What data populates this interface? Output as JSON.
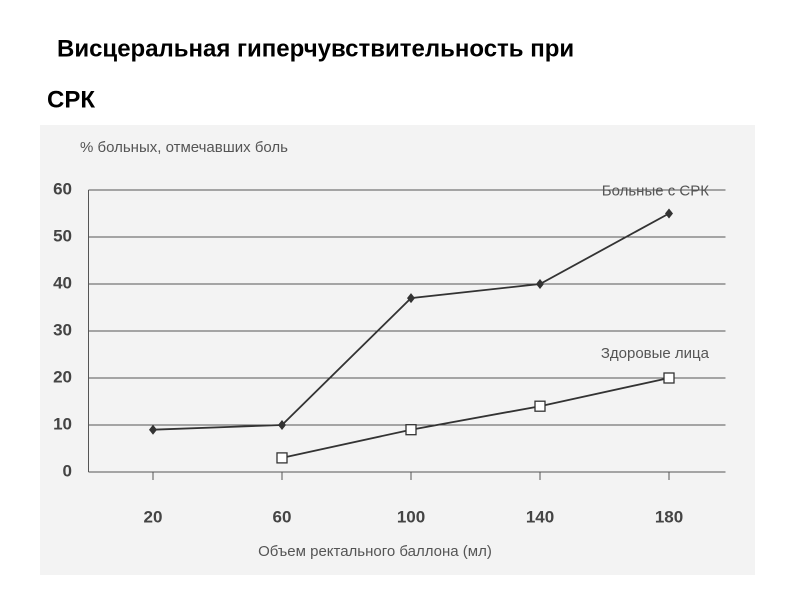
{
  "chart_data": {
    "type": "line",
    "title": "Висцеральная гиперчувствительность при",
    "subtitle": "СРК",
    "y_label": "% больных, отмечавших боль",
    "x_label": "Объем ректального баллона (мл)",
    "x": [
      20,
      60,
      100,
      140,
      180
    ],
    "series": [
      {
        "name": "Больные с СРК",
        "color": "#333333",
        "marker": "diamond",
        "values": [
          9,
          10,
          37,
          40,
          55
        ]
      },
      {
        "name": "Здоровые лица",
        "color": "#333333",
        "marker": "square-open",
        "values": [
          null,
          3,
          9,
          14,
          20
        ]
      }
    ],
    "xlim": [
      0,
      200
    ],
    "xticks": [
      20,
      60,
      100,
      140,
      180
    ],
    "ylim": [
      0,
      60
    ],
    "yticks": [
      0,
      10,
      20,
      30,
      40,
      50,
      60
    ],
    "grid": true
  }
}
